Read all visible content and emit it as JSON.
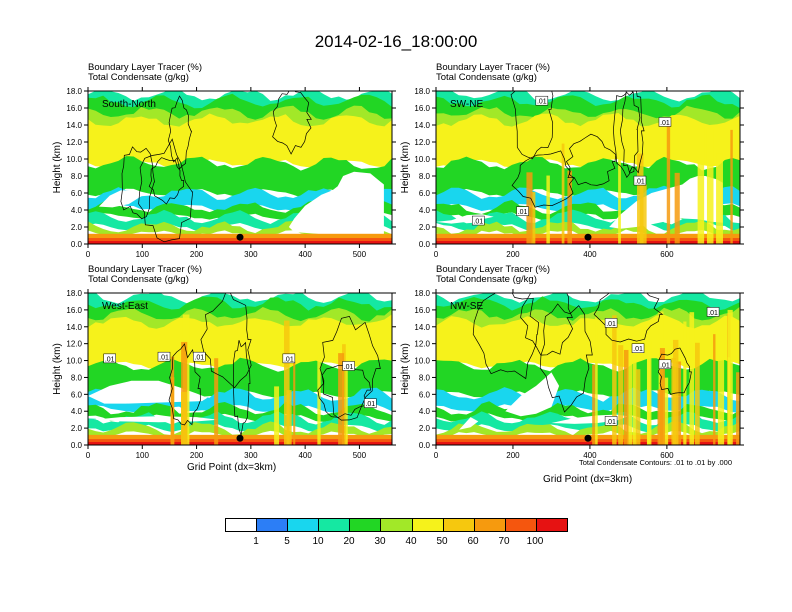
{
  "title": "2014-02-16_18:00:00",
  "panel_titles": {
    "line1": "Boundary Layer Tracer   (%)",
    "line2": "Total Condensate   (g/kg)"
  },
  "x_axis_title": "Grid Point (dx=3km)",
  "contour_note": "Total Condensate Contours: .01 to .01 by .000",
  "colors": [
    "#ffffff",
    "#2c7ef6",
    "#19d6ee",
    "#15e8a2",
    "#22d624",
    "#a2e828",
    "#f6f21b",
    "#f6c80e",
    "#f69a0e",
    "#f5560e",
    "#e61212"
  ],
  "colorbar": {
    "labels": [
      "1",
      "5",
      "10",
      "20",
      "30",
      "40",
      "50",
      "60",
      "70",
      "100"
    ]
  },
  "contour_label": ".01",
  "chart_data": [
    {
      "type": "heatmap",
      "name": "panel-south-north",
      "label": "South-North",
      "xlim": [
        0,
        560
      ],
      "xticks": [
        "0",
        "100",
        "200",
        "300",
        "400",
        "500"
      ],
      "xtick_values": [
        0,
        100,
        200,
        300,
        400,
        500
      ],
      "ylim": [
        0,
        18
      ],
      "ylabel": "Height (km)",
      "yticks": [
        "0.0",
        "2.0",
        "4.0",
        "6.0",
        "8.0",
        "10.0",
        "12.0",
        "14.0",
        "16.0",
        "18.0"
      ],
      "marker_x": 280,
      "contour_labels_xy": [],
      "white_regions": [
        {
          "x": [
            370,
            380,
            400,
            430,
            450,
            460,
            470,
            490,
            520,
            545,
            545,
            520,
            490,
            460,
            440,
            420,
            400,
            380,
            370
          ],
          "y": [
            2.0,
            3.0,
            4.5,
            5.8,
            6.3,
            6.8,
            8.0,
            8.5,
            8.3,
            7.0,
            0.4,
            0.3,
            0.5,
            0.8,
            1.1,
            1.2,
            1.3,
            1.4,
            2.0
          ]
        },
        {
          "x": [
            20,
            40,
            60,
            85,
            100,
            75,
            45,
            20
          ],
          "y": [
            4.4,
            5.7,
            6.3,
            6.3,
            5.7,
            4.7,
            4.3,
            4.4
          ]
        }
      ]
    },
    {
      "type": "heatmap",
      "name": "panel-sw-ne",
      "label": "SW-NE",
      "xlim": [
        0,
        790
      ],
      "xticks": [
        "0",
        "200",
        "400",
        "600"
      ],
      "xtick_values": [
        0,
        200,
        400,
        600
      ],
      "ylim": [
        0,
        18
      ],
      "ylabel": "Height (km)",
      "yticks": [
        "0.0",
        "2.0",
        "4.0",
        "6.0",
        "8.0",
        "10.0",
        "12.0",
        "14.0",
        "16.0",
        "18.0"
      ],
      "marker_x": 395,
      "contour_labels_xy": [
        [
          275,
          16.8
        ],
        [
          595,
          14.3
        ],
        [
          530,
          7.4
        ],
        [
          110,
          2.7
        ],
        [
          225,
          3.8
        ]
      ],
      "white_regions": [
        {
          "x": [
            450,
            480,
            520,
            560,
            600,
            640,
            660,
            680,
            700,
            730,
            745,
            745,
            720,
            680,
            640,
            600,
            560,
            520,
            480,
            450
          ],
          "y": [
            2.0,
            3.5,
            5.0,
            6.0,
            6.5,
            7.0,
            7.7,
            8.0,
            8.0,
            7.6,
            7.2,
            2.5,
            2.6,
            2.9,
            3.0,
            2.7,
            2.3,
            2.0,
            1.8,
            2.0
          ]
        },
        {
          "x": [
            0,
            40,
            80,
            120,
            150,
            120,
            80,
            40,
            0
          ],
          "y": [
            2.6,
            2.8,
            3.4,
            3.5,
            3.2,
            2.9,
            2.6,
            2.4,
            2.6
          ]
        }
      ]
    },
    {
      "type": "heatmap",
      "name": "panel-west-east",
      "label": "West-East",
      "xlim": [
        0,
        560
      ],
      "xticks": [
        "0",
        "100",
        "200",
        "300",
        "400",
        "500"
      ],
      "xtick_values": [
        0,
        100,
        200,
        300,
        400,
        500
      ],
      "ylim": [
        0,
        18
      ],
      "ylabel": "Height (km)",
      "yticks": [
        "0.0",
        "2.0",
        "4.0",
        "6.0",
        "8.0",
        "10.0",
        "12.0",
        "14.0",
        "16.0",
        "18.0"
      ],
      "marker_x": 280,
      "contour_labels_xy": [
        [
          40,
          10.2
        ],
        [
          140,
          10.4
        ],
        [
          205,
          10.4
        ],
        [
          370,
          10.2
        ],
        [
          480,
          9.3
        ],
        [
          520,
          4.9
        ]
      ],
      "white_regions": [
        {
          "x": [
            0,
            40,
            80,
            130,
            170,
            200,
            220,
            210,
            170,
            120,
            70,
            30,
            0
          ],
          "y": [
            5.8,
            7.0,
            7.6,
            7.6,
            6.8,
            6.1,
            5.6,
            5.2,
            5.1,
            5.0,
            4.9,
            4.9,
            5.8
          ]
        },
        {
          "x": [
            10,
            60,
            130,
            200,
            240,
            200,
            130,
            60,
            10
          ],
          "y": [
            3.0,
            3.3,
            3.4,
            3.3,
            3.0,
            2.8,
            2.7,
            2.8,
            3.0
          ]
        }
      ]
    },
    {
      "type": "heatmap",
      "name": "panel-nw-se",
      "label": "NW-SE",
      "xlim": [
        0,
        790
      ],
      "xticks": [
        "0",
        "200",
        "400",
        "600"
      ],
      "xtick_values": [
        0,
        200,
        400,
        600
      ],
      "ylim": [
        0,
        18
      ],
      "ylabel": "Height (km)",
      "yticks": [
        "0.0",
        "2.0",
        "4.0",
        "6.0",
        "8.0",
        "10.0",
        "12.0",
        "14.0",
        "16.0",
        "18.0"
      ],
      "marker_x": 395,
      "contour_labels_xy": [
        [
          455,
          14.4
        ],
        [
          525,
          11.4
        ],
        [
          595,
          9.5
        ],
        [
          720,
          15.7
        ],
        [
          455,
          2.8
        ]
      ],
      "white_regions": [
        {
          "x": [
            180,
            220,
            260,
            300,
            320,
            300,
            260,
            220,
            180
          ],
          "y": [
            4.0,
            5.8,
            7.0,
            8.6,
            7.0,
            4.5,
            3.7,
            3.4,
            4.0
          ]
        },
        {
          "x": [
            300,
            360,
            420,
            470,
            500,
            470,
            420,
            360,
            300
          ],
          "y": [
            2.6,
            3.2,
            3.5,
            3.6,
            3.4,
            2.9,
            2.6,
            2.5,
            2.6
          ]
        },
        {
          "x": [
            60,
            90,
            110,
            90,
            60
          ],
          "y": [
            1.8,
            2.1,
            2.8,
            3.3,
            1.8
          ]
        }
      ]
    }
  ]
}
